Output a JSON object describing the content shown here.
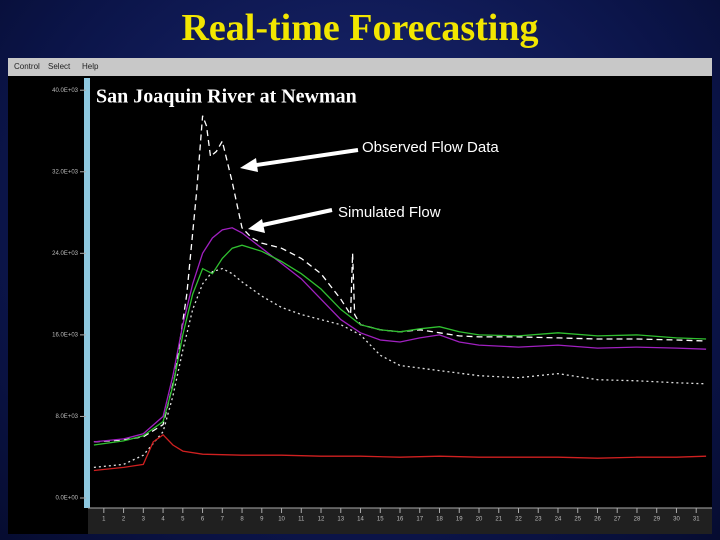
{
  "title": "Real-time Forecasting",
  "menu": [
    "Control",
    "Select",
    "Help"
  ],
  "chart_data": {
    "type": "line",
    "title": "San Joaquin River at Newman",
    "annotations": [
      "Observed Flow Data",
      "Simulated Flow"
    ],
    "xlim": [
      0.3,
      31.8
    ],
    "xticks": [
      1,
      2,
      3,
      4,
      5,
      6,
      7,
      8,
      9,
      10,
      11,
      12,
      13,
      14,
      15,
      16,
      17,
      18,
      19,
      20,
      21,
      22,
      23,
      24,
      25,
      26,
      27,
      28,
      29,
      30,
      31
    ],
    "ylim": [
      0,
      41000
    ],
    "yticks": [
      {
        "value": 0,
        "label": "0.0E+00"
      },
      {
        "value": 8000,
        "label": "8.0E+03"
      },
      {
        "value": 16000,
        "label": "16.0E+03"
      },
      {
        "value": 24000,
        "label": "24.0E+03"
      },
      {
        "value": 32000,
        "label": "32.0E+03"
      },
      {
        "value": 40000,
        "label": "40.0E+03"
      }
    ],
    "series": [
      {
        "color": "#ffffff",
        "dash": "6,4",
        "x": [
          0.5,
          2,
          3,
          4,
          4.6,
          5.2,
          5.7,
          6,
          6.2,
          6.4,
          6.7,
          7,
          7.5,
          8,
          8.5,
          9,
          10,
          11,
          12,
          13,
          13.5,
          13.6,
          13.7,
          14,
          15,
          16,
          17,
          18,
          19,
          20,
          22,
          24,
          26,
          28,
          30,
          31.5
        ],
        "values": [
          5500,
          5700,
          6000,
          7200,
          12000,
          20000,
          30000,
          37500,
          36500,
          33500,
          34000,
          35000,
          31000,
          26500,
          25500,
          25000,
          24500,
          23500,
          22000,
          19500,
          18000,
          24000,
          18000,
          17000,
          16500,
          16300,
          16500,
          16200,
          15900,
          15800,
          15800,
          15700,
          15600,
          15600,
          15500,
          15400
        ]
      },
      {
        "color": "#a020c0",
        "x": [
          0.5,
          2,
          3,
          4,
          4.5,
          5,
          5.5,
          6,
          6.5,
          7,
          7.5,
          8,
          9,
          10,
          11,
          12,
          13,
          14,
          15,
          16,
          17,
          18,
          19,
          20,
          22,
          24,
          26,
          28,
          30,
          31.5
        ],
        "values": [
          5500,
          5800,
          6300,
          8000,
          12000,
          17000,
          21000,
          24000,
          25500,
          26300,
          26500,
          26000,
          24500,
          23000,
          21500,
          19500,
          17500,
          16200,
          15500,
          15300,
          15700,
          16000,
          15300,
          15000,
          14800,
          15000,
          14700,
          14800,
          14700,
          14600
        ]
      },
      {
        "color": "#30c030",
        "x": [
          0.5,
          2,
          3,
          4,
          4.5,
          5,
          5.5,
          6,
          6.5,
          7,
          7.5,
          8,
          9,
          10,
          11,
          12,
          13,
          14,
          15,
          16,
          17,
          18,
          19,
          20,
          22,
          24,
          26,
          28,
          30,
          31.5
        ],
        "values": [
          5200,
          5600,
          6100,
          7500,
          11000,
          16000,
          20000,
          22500,
          22000,
          23500,
          24500,
          24800,
          24200,
          23200,
          22000,
          20500,
          18500,
          17000,
          16500,
          16300,
          16600,
          16800,
          16300,
          16000,
          15900,
          16200,
          15900,
          16000,
          15700,
          15600
        ]
      },
      {
        "color": "#e0e0e0",
        "dash": "2,3",
        "x": [
          0.5,
          2,
          3,
          4,
          4.5,
          5,
          5.5,
          6,
          6.5,
          7,
          7.5,
          8,
          9,
          10,
          11,
          12,
          13,
          14,
          15,
          16,
          18,
          20,
          22,
          24,
          26,
          28,
          30,
          31.5
        ],
        "values": [
          3000,
          3300,
          4200,
          6500,
          10000,
          14500,
          18500,
          21000,
          22200,
          22500,
          22000,
          21200,
          19800,
          18700,
          18000,
          17500,
          17000,
          16000,
          14000,
          13000,
          12500,
          12000,
          11800,
          12200,
          11600,
          11500,
          11300,
          11200
        ]
      },
      {
        "color": "#d02020",
        "x": [
          0.5,
          2,
          3,
          3.5,
          4,
          4.5,
          5,
          6,
          8,
          10,
          12,
          14,
          16,
          18,
          20,
          22,
          24,
          26,
          28,
          30,
          31.5
        ],
        "values": [
          2700,
          3000,
          3300,
          5500,
          6200,
          5200,
          4600,
          4300,
          4200,
          4200,
          4100,
          4100,
          4000,
          4100,
          4000,
          4000,
          4000,
          3900,
          4000,
          4000,
          4100
        ]
      }
    ]
  }
}
